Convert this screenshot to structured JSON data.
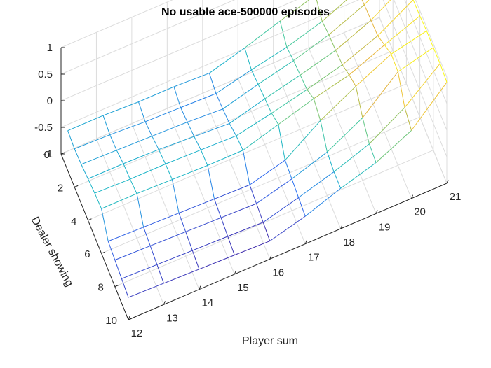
{
  "chart_data": {
    "type": "surface",
    "title": "No usable ace-500000 episodes",
    "xlabel": "Player sum",
    "ylabel": "Dealer showing",
    "zlabel": "",
    "x": [
      12,
      13,
      14,
      15,
      16,
      17,
      18,
      19,
      20,
      21
    ],
    "y": [
      1,
      2,
      3,
      4,
      5,
      6,
      7,
      8,
      9,
      10
    ],
    "x_ticks": [
      "12",
      "13",
      "14",
      "15",
      "16",
      "17",
      "18",
      "19",
      "20",
      "21"
    ],
    "y_ticks": [
      "0",
      "2",
      "4",
      "6",
      "8",
      "10"
    ],
    "z_ticks": [
      "-1",
      "-0.5",
      "0",
      "0.5",
      "1"
    ],
    "xlim": [
      12,
      21
    ],
    "ylim": [
      0,
      10
    ],
    "zlim": [
      -1,
      1
    ],
    "grid": true,
    "colormap": [
      "#3d26a8",
      "#2d6ff4",
      "#18b4c8",
      "#47c99a",
      "#a5c04d",
      "#e7b33c",
      "#f5d82e",
      "#f9fb0e"
    ],
    "z": [
      [
        -0.25,
        -0.25,
        -0.28,
        -0.28,
        -0.31,
        -0.12,
        0.1,
        0.3,
        0.6,
        0.92
      ],
      [
        -0.28,
        -0.3,
        -0.34,
        -0.36,
        -0.38,
        -0.22,
        -0.08,
        0.12,
        0.42,
        0.88
      ],
      [
        -0.26,
        -0.28,
        -0.3,
        -0.32,
        -0.36,
        -0.18,
        -0.02,
        0.18,
        0.46,
        0.88
      ],
      [
        -0.22,
        -0.22,
        -0.24,
        -0.28,
        -0.32,
        -0.14,
        0.02,
        0.2,
        0.48,
        0.89
      ],
      [
        -0.18,
        -0.2,
        -0.2,
        -0.22,
        -0.24,
        -0.1,
        0.06,
        0.24,
        0.5,
        0.89
      ],
      [
        -0.16,
        -0.16,
        -0.18,
        -0.2,
        -0.2,
        0.0,
        0.2,
        0.36,
        0.64,
        0.9
      ],
      [
        -0.46,
        -0.48,
        -0.5,
        -0.52,
        -0.54,
        -0.36,
        0.1,
        0.46,
        0.78,
        0.93
      ],
      [
        -0.5,
        -0.52,
        -0.54,
        -0.56,
        -0.58,
        -0.4,
        -0.18,
        0.18,
        0.76,
        0.93
      ],
      [
        -0.54,
        -0.56,
        -0.58,
        -0.6,
        -0.62,
        -0.44,
        -0.24,
        0.0,
        0.4,
        0.94
      ],
      [
        -0.58,
        -0.6,
        -0.62,
        -0.64,
        -0.66,
        -0.48,
        -0.24,
        -0.04,
        0.28,
        0.9
      ]
    ]
  }
}
